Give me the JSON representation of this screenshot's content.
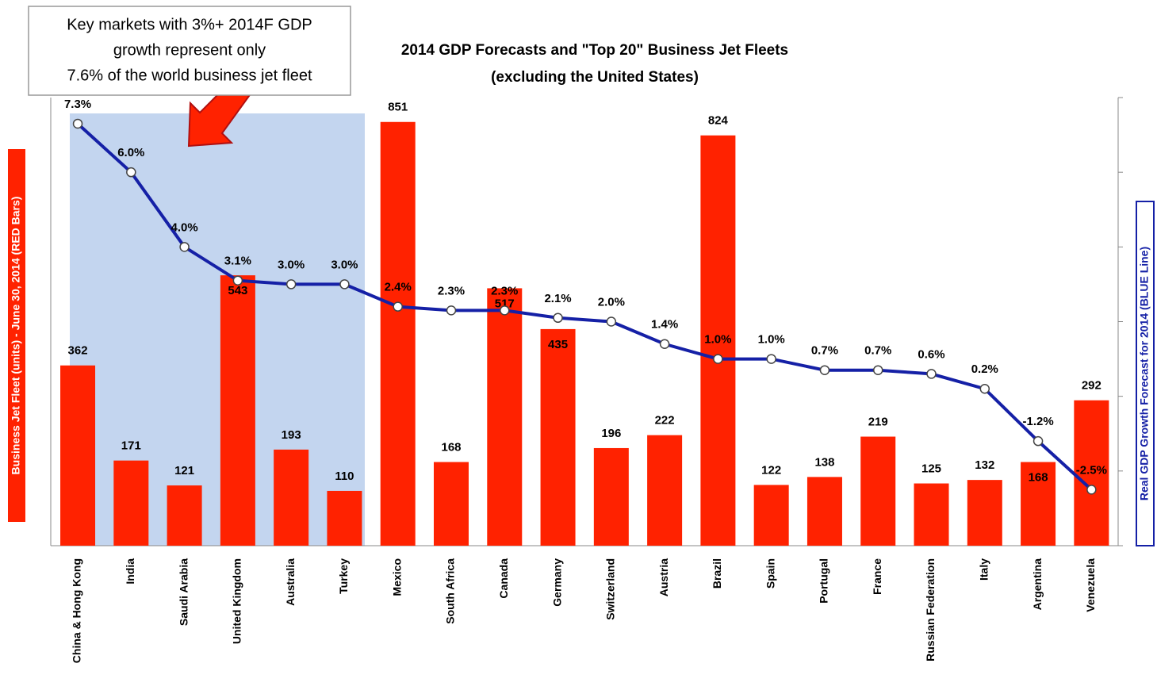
{
  "chart_data": {
    "type": "bar",
    "title": "2014 GDP Forecasts and \"Top 20\" Business Jet Fleets",
    "subtitle": "(excluding the United States)",
    "annotation": [
      "Key markets with 3%+ 2014F GDP",
      "growth represent only",
      "7.6% of the world business jet fleet"
    ],
    "y_label": "Business Jet Fleet (units) -  June 30, 2014 (RED Bars)",
    "y2_label": "Real GDP Growth Forecast for 2014 (BLUE Line)",
    "categories": [
      "China & Hong Kong",
      "India",
      "Saudi Arabia",
      "United Kingdom",
      "Australia",
      "Turkey",
      "Mexico",
      "South Africa",
      "Canada",
      "Germany",
      "Switzerland",
      "Austria",
      "Brazil",
      "Spain",
      "Portugal",
      "France",
      "Russian Federation",
      "Italy",
      "Argentina",
      "Venezuela"
    ],
    "ylim": [
      0,
      900
    ],
    "y2lim": [
      -4,
      8
    ],
    "y2ticks": [
      -4,
      -2,
      0,
      2,
      4,
      6,
      8
    ],
    "series": [
      {
        "name": "Business Jet Fleet",
        "type": "bar",
        "color": "#ff2200",
        "values": [
          362,
          171,
          121,
          543,
          193,
          110,
          851,
          168,
          517,
          435,
          196,
          222,
          824,
          122,
          138,
          219,
          125,
          132,
          168,
          292
        ]
      },
      {
        "name": "Real GDP Growth Forecast",
        "type": "line",
        "axis": "y2",
        "color": "#1520a6",
        "values": [
          7.3,
          6.0,
          4.0,
          3.1,
          3.0,
          3.0,
          2.4,
          2.3,
          2.3,
          2.1,
          2.0,
          1.4,
          1.0,
          1.0,
          0.7,
          0.7,
          0.6,
          0.2,
          -1.2,
          -2.5
        ],
        "value_labels": [
          "7.3%",
          "6.0%",
          "4.0%",
          "3.1%",
          "3.0%",
          "3.0%",
          "2.4%",
          "2.3%",
          "2.3%",
          "2.1%",
          "2.0%",
          "1.4%",
          "1.0%",
          "1.0%",
          "0.7%",
          "0.7%",
          "0.6%",
          "0.2%",
          "-1.2%",
          "-2.5%"
        ]
      }
    ]
  }
}
